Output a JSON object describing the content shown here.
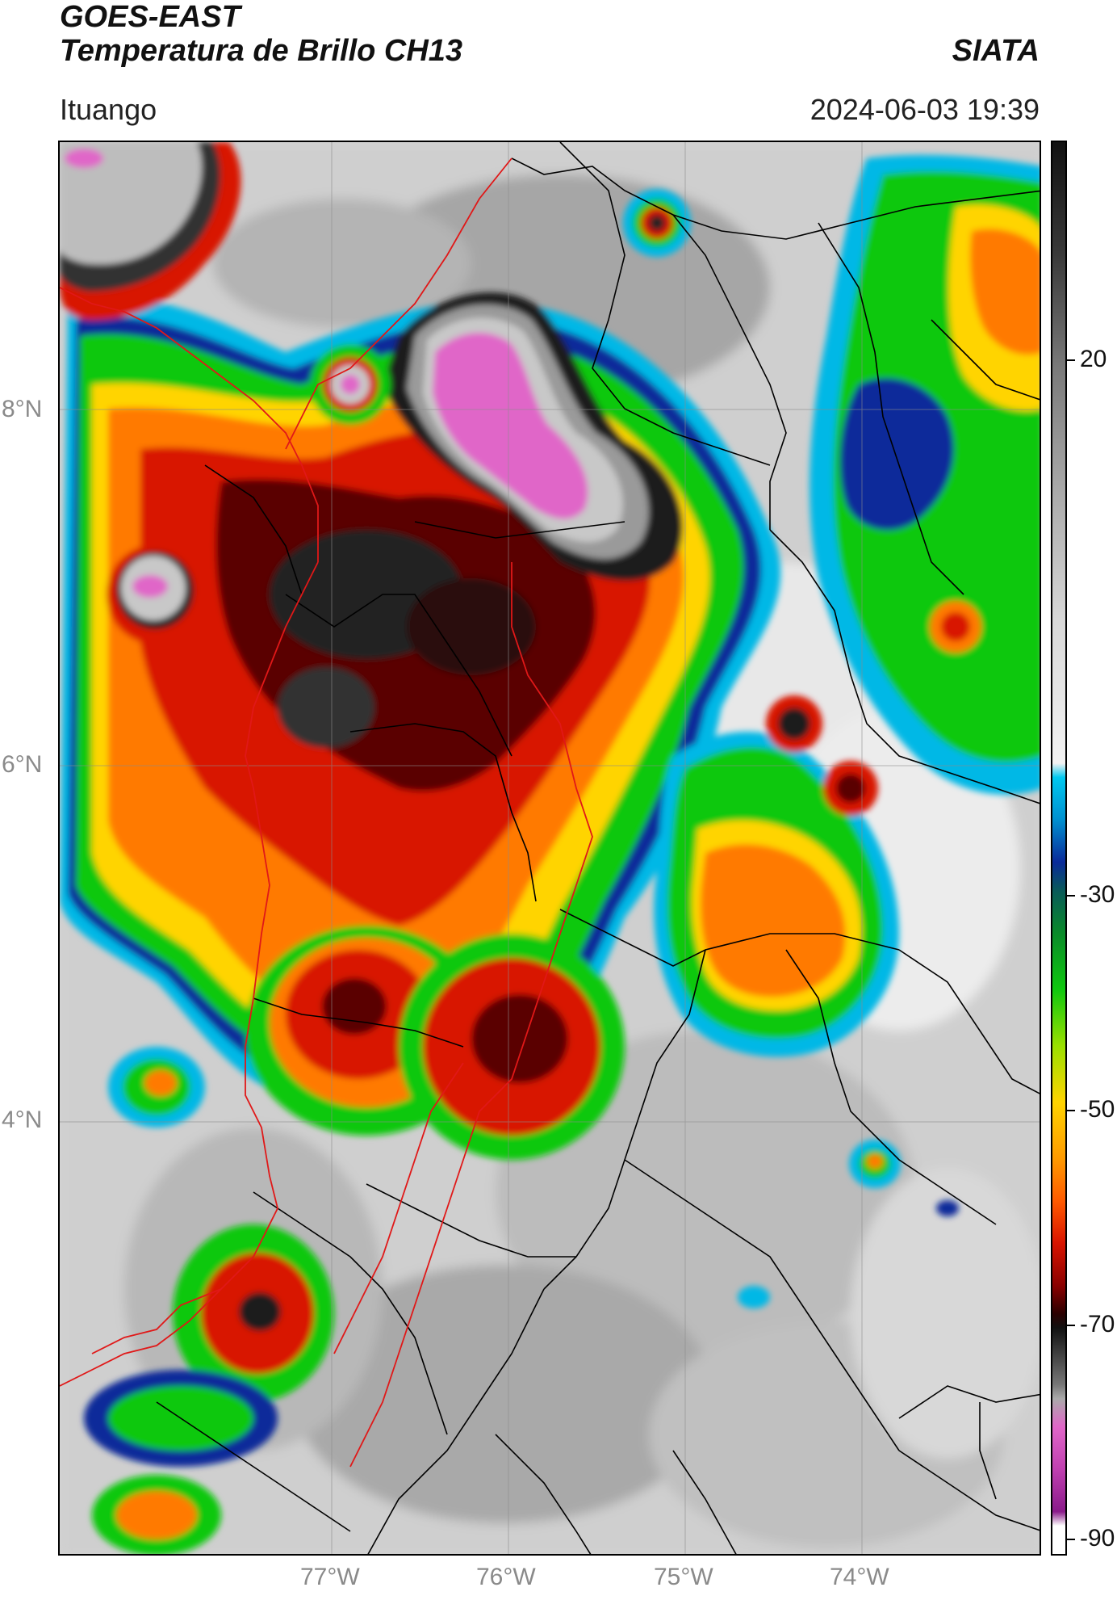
{
  "header": {
    "satellite": "GOES-EAST",
    "product": "Temperatura de Brillo CH13",
    "organization": "SIATA",
    "location": "Ituango",
    "datetime": "2024-06-03 19:39"
  },
  "map": {
    "latitude_labels": [
      {
        "label": "8°N",
        "lat": 8
      },
      {
        "label": "6°N",
        "lat": 6
      },
      {
        "label": "4°N",
        "lat": 4
      }
    ],
    "longitude_labels": [
      {
        "label": "77°W",
        "lon": -77
      },
      {
        "label": "76°W",
        "lon": -76
      },
      {
        "label": "75°W",
        "lon": -75
      },
      {
        "label": "74°W",
        "lon": -74
      }
    ]
  },
  "colorbar": {
    "ticks": [
      {
        "label": "20",
        "value": 20
      },
      {
        "label": "-30",
        "value": -30
      },
      {
        "label": "-50",
        "value": -50
      },
      {
        "label": "-70",
        "value": -70
      },
      {
        "label": "-90",
        "value": -90
      }
    ]
  },
  "colors": {
    "warm_gray": "#cfcfcf",
    "cold_light": "#e6e6e6",
    "cyan": "#00b8e6",
    "dark_blue": "#0a2a9a",
    "green": "#0fc80f",
    "yellow": "#ffd400",
    "orange": "#ff7a00",
    "red": "#d81400",
    "dark_red": "#5a0000",
    "black": "#111111",
    "magenta": "#e066c8",
    "border_red": "#e01818",
    "border_black": "#000000"
  }
}
